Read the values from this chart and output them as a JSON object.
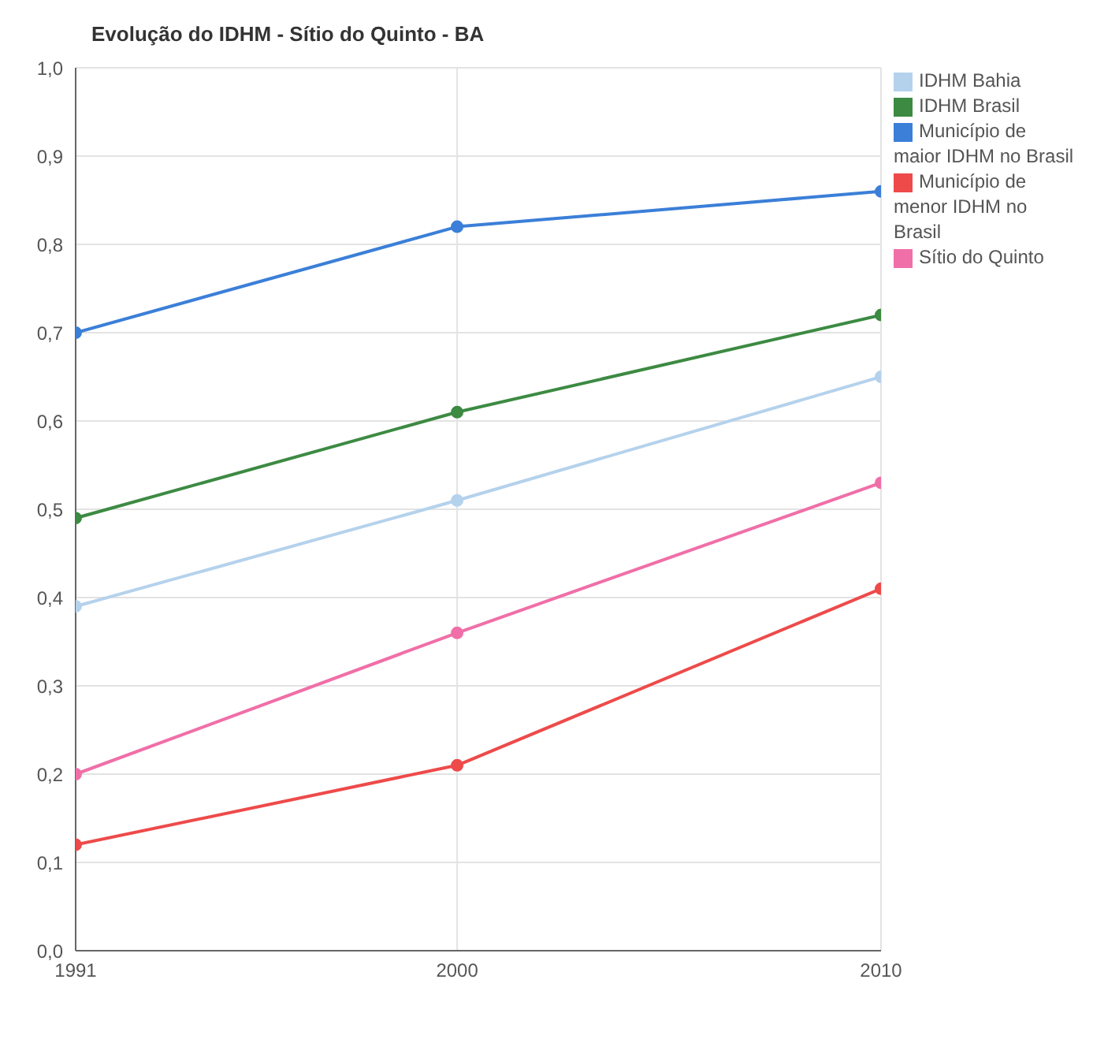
{
  "chart_data": {
    "type": "line",
    "title": "Evolução do IDHM - Sítio do Quinto - BA",
    "x": [
      1991,
      2000,
      2010
    ],
    "xlim": [
      1991,
      2010
    ],
    "xticks": [
      1991,
      2000,
      2010
    ],
    "ylim": [
      0,
      1
    ],
    "yticks": [
      {
        "value": 0,
        "label": "0,0"
      },
      {
        "value": 0.1,
        "label": "0,1"
      },
      {
        "value": 0.2,
        "label": "0,2"
      },
      {
        "value": 0.3,
        "label": "0,3"
      },
      {
        "value": 0.4,
        "label": "0,4"
      },
      {
        "value": 0.5,
        "label": "0,5"
      },
      {
        "value": 0.6,
        "label": "0,6"
      },
      {
        "value": 0.7,
        "label": "0,7"
      },
      {
        "value": 0.8,
        "label": "0,8"
      },
      {
        "value": 0.9,
        "label": "0,9"
      },
      {
        "value": 1,
        "label": "1,0"
      }
    ],
    "series": [
      {
        "name": "Sítio do Quinto",
        "color": "#f06fa8",
        "values": [
          0.2,
          0.36,
          0.53
        ]
      },
      {
        "name": "Município de maior IDHM no Brasil",
        "color": "#3b7fd8",
        "values": [
          0.7,
          0.82,
          0.86
        ]
      },
      {
        "name": "Município de menor IDHM no Brasil",
        "color": "#ee4a4a",
        "values": [
          0.12,
          0.21,
          0.41
        ]
      },
      {
        "name": "IDHM Brasil",
        "color": "#3d8a43",
        "values": [
          0.49,
          0.61,
          0.72
        ]
      },
      {
        "name": "IDHM Bahia",
        "color": "#b5d2ec",
        "values": [
          0.39,
          0.51,
          0.65
        ]
      }
    ],
    "grid": true,
    "legend": "top right",
    "marker": "circle",
    "line_style": "solid"
  }
}
